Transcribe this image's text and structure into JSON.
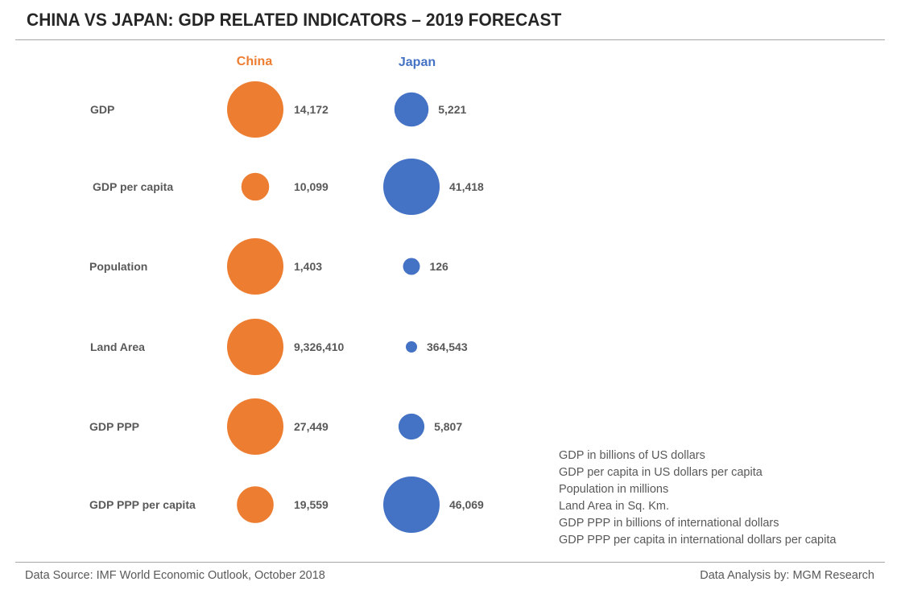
{
  "title": "CHINA VS JAPAN: GDP RELATED INDICATORS – 2019 FORECAST",
  "colors": {
    "china": "#ED7D31",
    "japan": "#4472C4",
    "text": "#595959",
    "title": "#262626",
    "divider": "#A6A6A6"
  },
  "notes": [
    "GDP in billions of US dollars",
    "GDP per capita in US dollars per capita",
    "Population in millions",
    "Land Area in Sq. Km.",
    "GDP PPP in billions of international dollars",
    "GDP PPP per capita in international dollars per capita"
  ],
  "footer": {
    "source": "Data Source: IMF World Economic Outlook, October 2018",
    "credit": "Data Analysis by: MGM Research"
  },
  "chart_data": {
    "type": "bubble-comparison",
    "title": "CHINA VS JAPAN: GDP RELATED INDICATORS – 2019 FORECAST",
    "series": [
      {
        "name": "China",
        "color": "#ED7D31"
      },
      {
        "name": "Japan",
        "color": "#4472C4"
      }
    ],
    "indicators": [
      {
        "label": "GDP",
        "china": 14172,
        "japan": 5221,
        "china_label": "14,172",
        "japan_label": "5,221",
        "unit": "billions of US dollars"
      },
      {
        "label": "GDP per capita",
        "china": 10099,
        "japan": 41418,
        "china_label": "10,099",
        "japan_label": "41,418",
        "unit": "US dollars per capita"
      },
      {
        "label": "Population",
        "china": 1403,
        "japan": 126,
        "china_label": "1,403",
        "japan_label": "126",
        "unit": "millions"
      },
      {
        "label": "Land Area",
        "china": 9326410,
        "japan": 364543,
        "china_label": "9,326,410",
        "japan_label": "364,543",
        "unit": "Sq. Km."
      },
      {
        "label": "GDP PPP",
        "china": 27449,
        "japan": 5807,
        "china_label": "27,449",
        "japan_label": "5,807",
        "unit": "billions of international dollars"
      },
      {
        "label": "GDP PPP per capita",
        "china": 19559,
        "japan": 46069,
        "china_label": "19,559",
        "japan_label": "46,069",
        "unit": "international dollars per capita"
      }
    ],
    "encoding": "bubble area proportional to value within each indicator row; larger value of each pair drawn at max size",
    "legend": "column headers at top"
  }
}
